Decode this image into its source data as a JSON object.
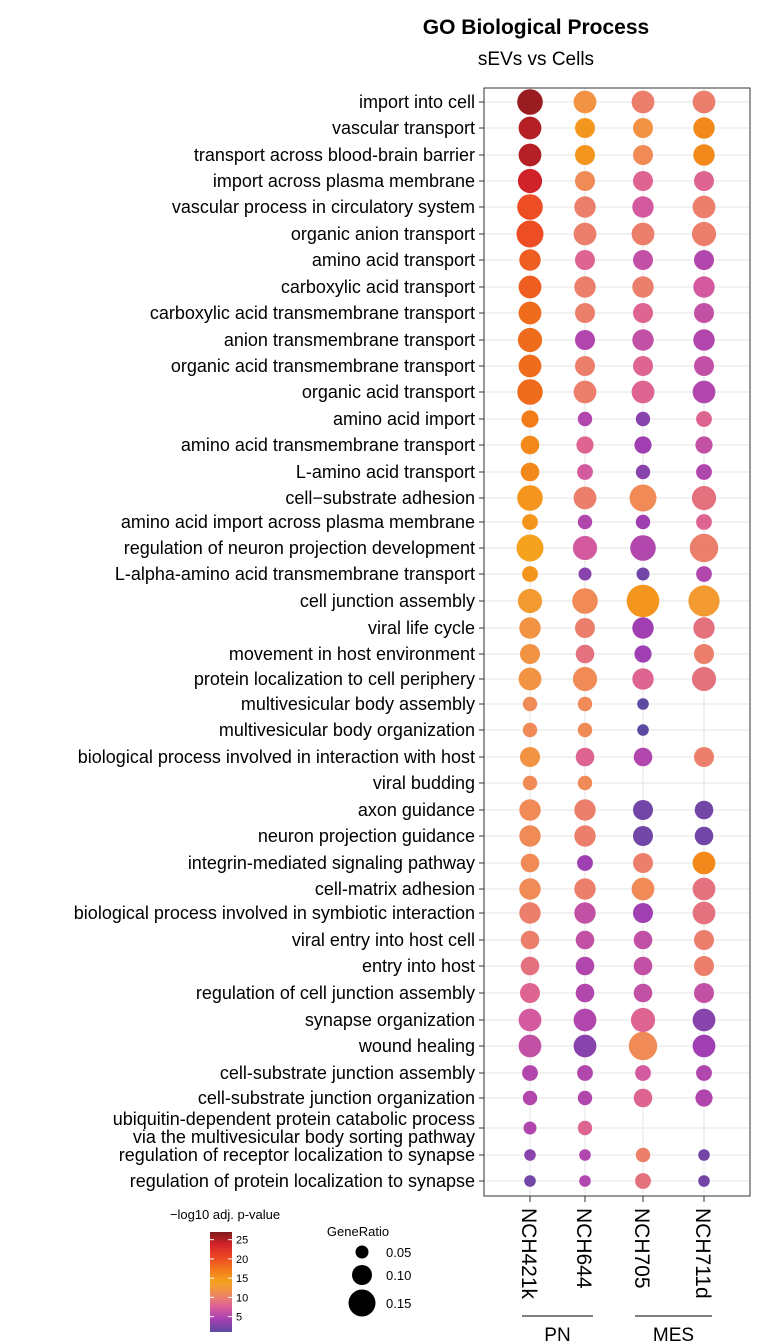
{
  "chart_data": {
    "type": "scatter",
    "title": "GO Biological Process",
    "subtitle": "sEVs vs Cells",
    "samples": [
      "NCH421k",
      "NCH644",
      "NCH705",
      "NCH711d"
    ],
    "groups": [
      {
        "label": "PN",
        "samples": [
          "NCH421k",
          "NCH644"
        ]
      },
      {
        "label": "MES",
        "samples": [
          "NCH705",
          "NCH711d"
        ]
      }
    ],
    "terms": [
      "import into cell",
      "vascular transport",
      "transport across blood-brain barrier",
      "import across plasma membrane",
      "vascular process in circulatory system",
      "organic anion transport",
      "amino acid transport",
      "carboxylic acid transport",
      "carboxylic acid transmembrane transport",
      "anion transmembrane transport",
      "organic acid transmembrane transport",
      "organic acid transport",
      "amino acid import",
      "amino acid transmembrane transport",
      "L-amino acid transport",
      "cell−substrate adhesion",
      "amino acid import across plasma membrane",
      "regulation of neuron projection development",
      "L-alpha-amino acid transmembrane transport",
      "cell junction assembly",
      "viral life cycle",
      "movement in host environment",
      "protein localization to cell periphery",
      "multivesicular body assembly",
      "multivesicular body organization",
      "biological process involved in interaction with host",
      "viral budding",
      "axon guidance",
      "neuron projection guidance",
      "integrin-mediated signaling pathway",
      "cell-matrix adhesion",
      "biological process involved in symbiotic interaction",
      "viral entry into host cell",
      "entry into host",
      "regulation of cell junction assembly",
      "synapse organization",
      "wound healing",
      "cell-substrate junction assembly",
      "cell-substrate junction organization",
      "ubiquitin-dependent protein catabolic process\nvia the multivesicular body sorting pathway",
      "regulation of receptor localization to synapse",
      "regulation of protein localization to synapse"
    ],
    "gene_ratio": [
      [
        0.14,
        0.12,
        0.12,
        0.12
      ],
      [
        0.12,
        0.1,
        0.1,
        0.11
      ],
      [
        0.12,
        0.1,
        0.1,
        0.11
      ],
      [
        0.13,
        0.1,
        0.1,
        0.1
      ],
      [
        0.14,
        0.11,
        0.11,
        0.12
      ],
      [
        0.15,
        0.12,
        0.12,
        0.13
      ],
      [
        0.11,
        0.1,
        0.1,
        0.1
      ],
      [
        0.12,
        0.11,
        0.11,
        0.11
      ],
      [
        0.12,
        0.1,
        0.1,
        0.1
      ],
      [
        0.13,
        0.1,
        0.11,
        0.11
      ],
      [
        0.12,
        0.1,
        0.1,
        0.1
      ],
      [
        0.14,
        0.12,
        0.12,
        0.12
      ],
      [
        0.08,
        0.06,
        0.06,
        0.07
      ],
      [
        0.09,
        0.08,
        0.08,
        0.08
      ],
      [
        0.09,
        0.07,
        0.06,
        0.07
      ],
      [
        0.14,
        0.12,
        0.15,
        0.13
      ],
      [
        0.07,
        0.06,
        0.06,
        0.07
      ],
      [
        0.15,
        0.13,
        0.14,
        0.16
      ],
      [
        0.07,
        0.05,
        0.05,
        0.07
      ],
      [
        0.13,
        0.14,
        0.19,
        0.18
      ],
      [
        0.11,
        0.1,
        0.11,
        0.11
      ],
      [
        0.1,
        0.09,
        0.08,
        0.1
      ],
      [
        0.12,
        0.13,
        0.11,
        0.13
      ],
      [
        0.06,
        0.06,
        0.04,
        null
      ],
      [
        0.06,
        0.06,
        0.04,
        null
      ],
      [
        0.1,
        0.09,
        0.09,
        0.1
      ],
      [
        0.06,
        0.06,
        null,
        null
      ],
      [
        0.11,
        0.11,
        0.1,
        0.09
      ],
      [
        0.11,
        0.11,
        0.1,
        0.09
      ],
      [
        0.09,
        0.07,
        0.1,
        0.12
      ],
      [
        0.11,
        0.11,
        0.12,
        0.12
      ],
      [
        0.11,
        0.11,
        0.1,
        0.12
      ],
      [
        0.09,
        0.09,
        0.09,
        0.1
      ],
      [
        0.09,
        0.09,
        0.09,
        0.1
      ],
      [
        0.1,
        0.09,
        0.09,
        0.1
      ],
      [
        0.12,
        0.12,
        0.13,
        0.12
      ],
      [
        0.12,
        0.12,
        0.16,
        0.12
      ],
      [
        0.07,
        0.07,
        0.07,
        0.07
      ],
      [
        0.06,
        0.06,
        0.09,
        0.08
      ],
      [
        0.05,
        0.06,
        null,
        null
      ],
      [
        0.04,
        0.04,
        0.06,
        0.04
      ],
      [
        0.04,
        0.04,
        0.07,
        0.04
      ]
    ],
    "neg_log10_padj": [
      [
        26,
        12,
        10,
        10
      ],
      [
        25,
        15,
        12,
        16
      ],
      [
        25,
        15,
        11,
        16
      ],
      [
        24,
        11,
        8,
        8
      ],
      [
        20,
        10,
        7,
        10
      ],
      [
        20,
        10,
        10,
        10
      ],
      [
        19,
        8,
        6,
        5
      ],
      [
        19,
        10,
        10,
        7
      ],
      [
        18,
        10,
        8,
        6
      ],
      [
        18,
        5,
        6,
        5
      ],
      [
        18,
        10,
        8,
        6
      ],
      [
        18,
        10,
        8,
        5
      ],
      [
        17,
        5,
        3,
        8
      ],
      [
        16,
        8,
        4,
        6
      ],
      [
        16,
        7,
        3,
        5
      ],
      [
        15,
        10,
        11,
        9
      ],
      [
        15,
        5,
        4,
        8
      ],
      [
        14,
        7,
        5,
        10
      ],
      [
        15,
        3,
        2,
        5
      ],
      [
        13,
        11,
        15,
        13
      ],
      [
        12,
        10,
        4,
        9
      ],
      [
        12,
        9,
        4,
        10
      ],
      [
        12,
        11,
        8,
        9
      ],
      [
        11,
        11,
        1,
        null
      ],
      [
        11,
        11,
        1,
        null
      ],
      [
        12,
        8,
        5,
        10
      ],
      [
        11,
        11,
        null,
        null
      ],
      [
        11,
        10,
        2,
        2
      ],
      [
        11,
        10,
        2,
        2
      ],
      [
        11,
        4,
        10,
        16
      ],
      [
        11,
        10,
        11,
        9
      ],
      [
        10,
        6,
        4,
        9
      ],
      [
        10,
        6,
        6,
        10
      ],
      [
        9,
        5,
        6,
        10
      ],
      [
        8,
        5,
        6,
        6
      ],
      [
        7,
        5,
        8,
        3
      ],
      [
        6,
        3,
        11,
        4
      ],
      [
        5,
        5,
        7,
        5
      ],
      [
        5,
        5,
        8,
        5
      ],
      [
        5,
        8,
        null,
        null
      ],
      [
        3,
        5,
        10,
        2
      ],
      [
        2,
        5,
        9,
        2
      ]
    ],
    "legend_color": {
      "title": "−log10 adj. p-value",
      "ticks": [
        25,
        20,
        15,
        10,
        5
      ],
      "range": [
        1,
        27
      ]
    },
    "legend_size": {
      "title": "GeneRatio",
      "ticks": [
        0.05,
        0.1,
        0.15
      ],
      "tick_labels": [
        "0.05",
        "0.10",
        "0.15"
      ]
    }
  }
}
